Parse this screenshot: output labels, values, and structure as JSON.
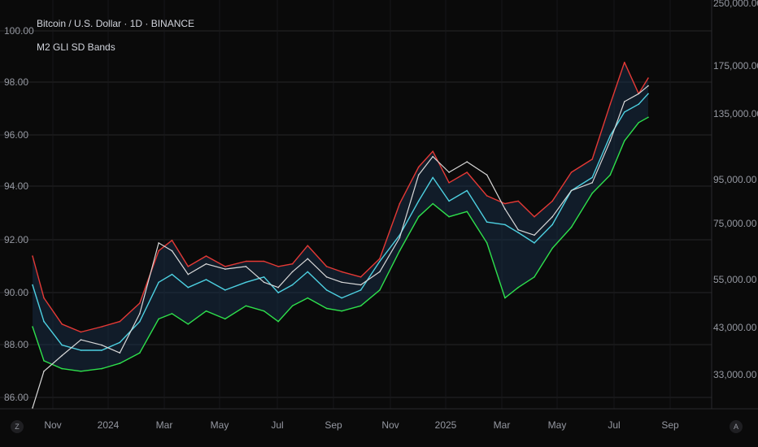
{
  "legend": {
    "title": "Bitcoin / U.S. Dollar · 1D · BINANCE",
    "indicator": "M2 GLI SD Bands"
  },
  "buttons": {
    "left": "Z",
    "right": "A"
  },
  "colors": {
    "background": "#0a0a0a",
    "upper_band": "#e53935",
    "mid_band": "#4dd0e1",
    "lower_band": "#2ee04c",
    "price": "#d8d8d8",
    "band_fill": "#1b3350",
    "grid": "#262628",
    "axis_text": "#9598a1"
  },
  "chart_data": {
    "type": "line",
    "left_axis": {
      "ticks": [
        "100.00",
        "98.00",
        "96.00",
        "94.00",
        "92.00",
        "90.00",
        "88.00",
        "86.00"
      ],
      "range": [
        85.5,
        101.2
      ]
    },
    "right_axis": {
      "scale": "log",
      "ticks": [
        "250,000.00",
        "175,000.00",
        "135,000.00",
        "95,000.00",
        "75,000.00",
        "55,000.00",
        "43,000.00",
        "33,000.00"
      ]
    },
    "x_axis": {
      "ticks": [
        "Nov",
        "2024",
        "Mar",
        "May",
        "Jul",
        "Sep",
        "Nov",
        "2025",
        "Mar",
        "May",
        "Jul",
        "Sep"
      ]
    },
    "x": [
      "2023-10-20",
      "2023-11-01",
      "2023-11-20",
      "2023-12-10",
      "2024-01-01",
      "2024-01-20",
      "2024-02-10",
      "2024-03-01",
      "2024-03-15",
      "2024-04-01",
      "2024-04-20",
      "2024-05-10",
      "2024-06-01",
      "2024-06-20",
      "2024-07-05",
      "2024-07-20",
      "2024-08-05",
      "2024-08-25",
      "2024-09-10",
      "2024-09-30",
      "2024-10-20",
      "2024-11-10",
      "2024-11-30",
      "2024-12-15",
      "2025-01-01",
      "2025-01-20",
      "2025-02-10",
      "2025-03-01",
      "2025-03-15",
      "2025-04-01",
      "2025-04-20",
      "2025-05-10",
      "2025-06-01",
      "2025-06-20",
      "2025-07-05",
      "2025-07-20",
      "2025-07-30"
    ],
    "series": [
      {
        "name": "Upper band",
        "color": "upper_band",
        "values": [
          91.4,
          89.8,
          88.8,
          88.5,
          88.7,
          88.9,
          89.6,
          91.6,
          92.0,
          91.0,
          91.4,
          91.0,
          91.2,
          91.2,
          91.0,
          91.1,
          91.8,
          91.0,
          90.8,
          90.6,
          91.3,
          93.4,
          94.8,
          95.4,
          94.2,
          94.6,
          93.7,
          93.4,
          93.5,
          92.9,
          93.5,
          94.6,
          95.1,
          97.2,
          98.8,
          97.6,
          98.2
        ]
      },
      {
        "name": "Middle band",
        "color": "mid_band",
        "values": [
          90.3,
          88.9,
          88.0,
          87.8,
          87.8,
          88.1,
          88.9,
          90.4,
          90.7,
          90.2,
          90.5,
          90.1,
          90.4,
          90.6,
          90.0,
          90.3,
          90.8,
          90.1,
          89.8,
          90.1,
          91.2,
          92.2,
          93.5,
          94.4,
          93.5,
          93.9,
          92.7,
          92.6,
          92.3,
          91.9,
          92.6,
          93.9,
          94.4,
          96.0,
          96.9,
          97.2,
          97.6
        ]
      },
      {
        "name": "Lower band",
        "color": "lower_band",
        "values": [
          88.7,
          87.4,
          87.1,
          87.0,
          87.1,
          87.3,
          87.7,
          89.0,
          89.2,
          88.8,
          89.3,
          89.0,
          89.5,
          89.3,
          88.9,
          89.5,
          89.8,
          89.4,
          89.3,
          89.5,
          90.1,
          91.6,
          92.9,
          93.4,
          92.9,
          93.1,
          91.9,
          89.8,
          90.2,
          90.6,
          91.7,
          92.5,
          93.8,
          94.5,
          95.8,
          96.5,
          96.7
        ]
      },
      {
        "name": "Price",
        "color": "price",
        "values": [
          85.6,
          87.0,
          87.6,
          88.2,
          88.0,
          87.7,
          89.2,
          91.9,
          91.6,
          90.7,
          91.1,
          90.9,
          91.0,
          90.4,
          90.2,
          90.8,
          91.3,
          90.6,
          90.4,
          90.3,
          90.8,
          92.1,
          94.5,
          95.2,
          94.6,
          95.0,
          94.5,
          93.2,
          92.4,
          92.2,
          92.9,
          93.9,
          94.2,
          95.8,
          97.3,
          97.6,
          97.9
        ]
      }
    ]
  }
}
